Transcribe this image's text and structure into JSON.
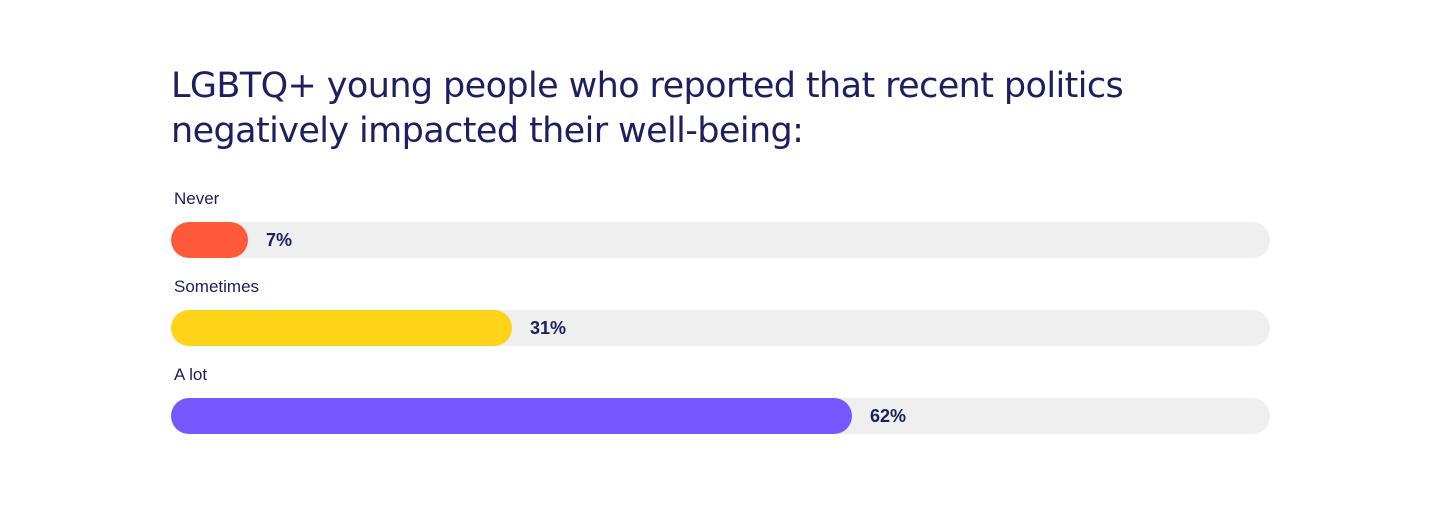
{
  "chart_data": {
    "type": "bar",
    "orientation": "horizontal",
    "title": "LGBTQ+ young people who reported that recent politics negatively impacted their well-being:",
    "categories": [
      "Never",
      "Sometimes",
      "A lot"
    ],
    "values": [
      7,
      31,
      62
    ],
    "value_labels": [
      "7%",
      "31%",
      "62%"
    ],
    "colors": [
      "#ff5a3c",
      "#ffd318",
      "#7558ff"
    ],
    "track_color": "#efefef",
    "xlim": [
      0,
      100
    ],
    "grid": false,
    "legend": "none"
  }
}
